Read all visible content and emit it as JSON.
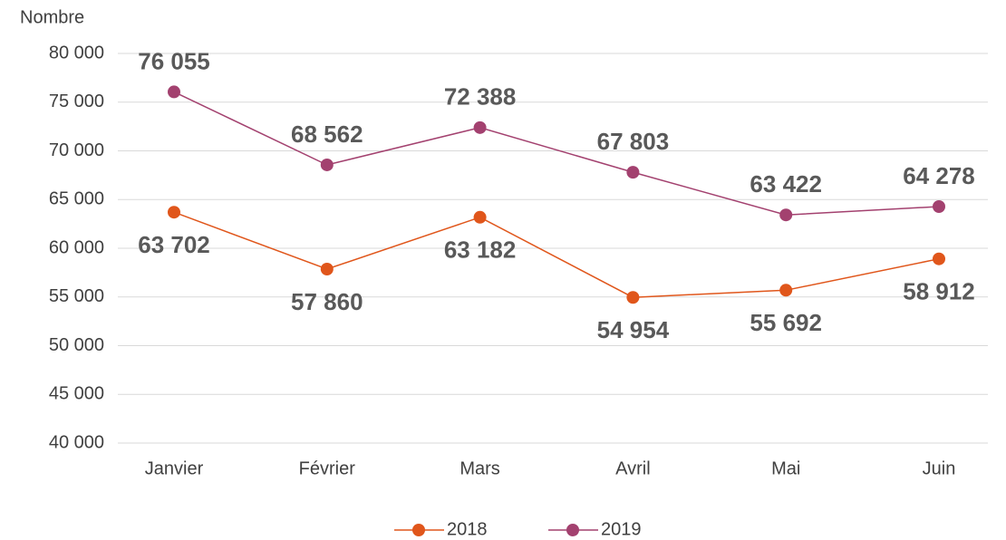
{
  "chart_data": {
    "type": "line",
    "y_label": "Nombre",
    "categories": [
      "Janvier",
      "Février",
      "Mars",
      "Avril",
      "Mai",
      "Juin"
    ],
    "series": [
      {
        "name": "2018",
        "color": "#e0561b",
        "values": [
          63702,
          57860,
          63182,
          54954,
          55692,
          58912
        ],
        "value_labels": [
          "63 702",
          "57 860",
          "63 182",
          "54 954",
          "55 692",
          "58 912"
        ]
      },
      {
        "name": "2019",
        "color": "#a3416f",
        "values": [
          76055,
          68562,
          72388,
          67803,
          63422,
          64278
        ],
        "value_labels": [
          "76 055",
          "68 562",
          "72 388",
          "67 803",
          "63 422",
          "64 278"
        ]
      }
    ],
    "ylim": [
      40000,
      80000
    ],
    "yticks": [
      {
        "value": 40000,
        "label": "40 000"
      },
      {
        "value": 45000,
        "label": "45 000"
      },
      {
        "value": 50000,
        "label": "50 000"
      },
      {
        "value": 55000,
        "label": "55 000"
      },
      {
        "value": 60000,
        "label": "60 000"
      },
      {
        "value": 65000,
        "label": "65 000"
      },
      {
        "value": 70000,
        "label": "70 000"
      },
      {
        "value": 75000,
        "label": "75 000"
      },
      {
        "value": 80000,
        "label": "80 000"
      }
    ],
    "grid": true,
    "legend": "bottom"
  }
}
